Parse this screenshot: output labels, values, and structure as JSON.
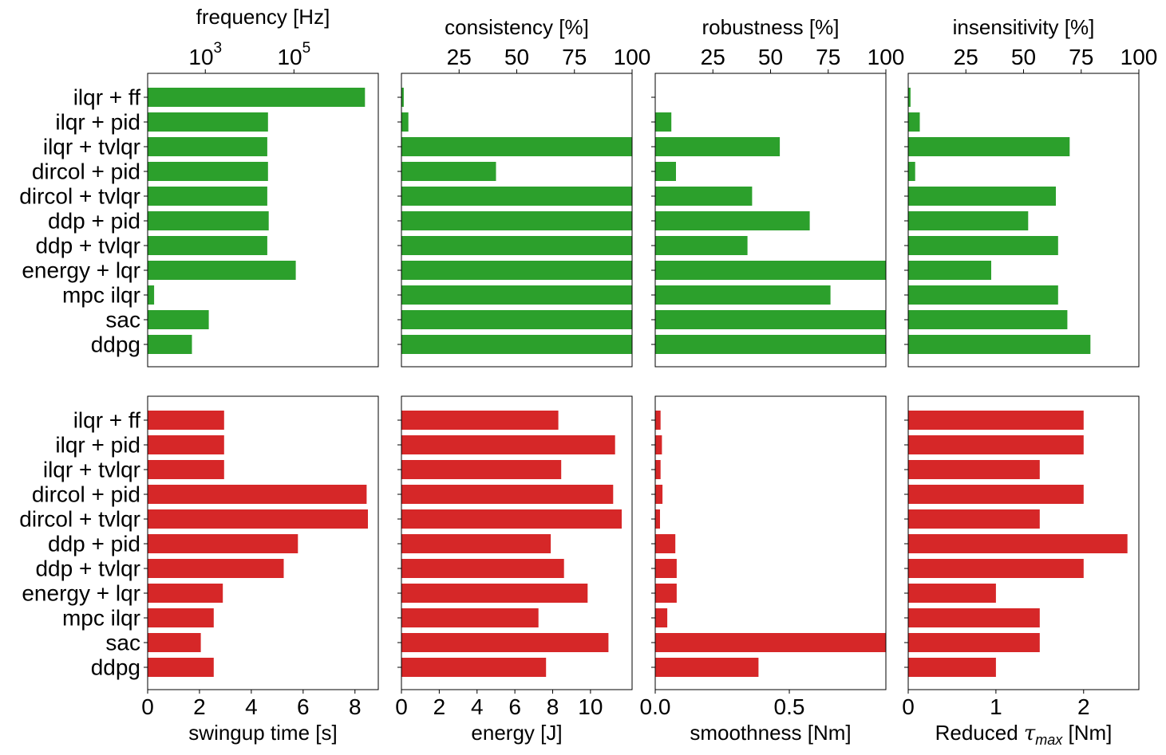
{
  "colors": {
    "top": "#2ca02c",
    "bottom": "#d62728",
    "axis": "#000000"
  },
  "categories": [
    "ilqr + ff",
    "ilqr + pid",
    "ilqr + tvlqr",
    "dircol + pid",
    "dircol + tvlqr",
    "ddp + pid",
    "ddp + tvlqr",
    "energy + lqr",
    "mpc ilqr",
    "sac",
    "ddpg"
  ],
  "chart_data": [
    {
      "type": "bar",
      "orientation": "horizontal",
      "row": "top",
      "column": 0,
      "x_scale": "log",
      "xlabel": "frequency [Hz]",
      "xlim": [
        50,
        8000000
      ],
      "tick_values": [
        1000,
        100000
      ],
      "tick_labels": [
        {
          "base": "10",
          "exp": "3"
        },
        {
          "base": "10",
          "exp": "5"
        }
      ],
      "values": [
        4000000,
        26000,
        25000,
        26000,
        25000,
        27000,
        25000,
        110000,
        70,
        1200,
        500
      ]
    },
    {
      "type": "bar",
      "orientation": "horizontal",
      "row": "top",
      "column": 1,
      "xlabel": "consistency [%]",
      "xlim": [
        0,
        100
      ],
      "tick_values": [
        25,
        50,
        75,
        100
      ],
      "tick_labels": [
        "25",
        "50",
        "75",
        "100"
      ],
      "values": [
        1,
        3,
        100,
        41,
        100,
        100,
        100,
        100,
        100,
        100,
        100
      ]
    },
    {
      "type": "bar",
      "orientation": "horizontal",
      "row": "top",
      "column": 2,
      "xlabel": "robustness [%]",
      "xlim": [
        0,
        100
      ],
      "tick_values": [
        25,
        50,
        75,
        100
      ],
      "tick_labels": [
        "25",
        "50",
        "75",
        "100"
      ],
      "values": [
        0,
        7,
        54,
        9,
        42,
        67,
        40,
        100,
        76,
        100,
        100
      ]
    },
    {
      "type": "bar",
      "orientation": "horizontal",
      "row": "top",
      "column": 3,
      "xlabel": "insensitivity [%]",
      "xlim": [
        0,
        100
      ],
      "tick_values": [
        25,
        50,
        75,
        100
      ],
      "tick_labels": [
        "25",
        "50",
        "75",
        "100"
      ],
      "values": [
        1,
        5,
        70,
        3,
        64,
        52,
        65,
        36,
        65,
        69,
        79
      ]
    },
    {
      "type": "bar",
      "orientation": "horizontal",
      "row": "bottom",
      "column": 0,
      "xlabel": "swingup time [s]",
      "xlim": [
        0,
        8.9
      ],
      "tick_values": [
        0,
        2,
        4,
        6,
        8
      ],
      "tick_labels": [
        "0",
        "2",
        "4",
        "6",
        "8"
      ],
      "values": [
        2.95,
        2.95,
        2.95,
        8.45,
        8.5,
        5.8,
        5.25,
        2.9,
        2.55,
        2.05,
        2.55
      ]
    },
    {
      "type": "bar",
      "orientation": "horizontal",
      "row": "bottom",
      "column": 1,
      "xlabel": "energy [J]",
      "xlim": [
        0,
        12.2
      ],
      "tick_values": [
        0,
        2,
        4,
        6,
        8,
        10
      ],
      "tick_labels": [
        "0",
        "2",
        "4",
        "6",
        "8",
        "10"
      ],
      "values": [
        8.3,
        11.3,
        8.45,
        11.2,
        11.65,
        7.9,
        8.6,
        9.85,
        7.25,
        10.95,
        7.65
      ]
    },
    {
      "type": "bar",
      "orientation": "horizontal",
      "row": "bottom",
      "column": 2,
      "xlabel": "smoothness [Nm]",
      "xlim": [
        0,
        0.86
      ],
      "tick_values": [
        0.0,
        0.5
      ],
      "tick_labels": [
        "0.0",
        "0.5"
      ],
      "values": [
        0.02,
        0.025,
        0.02,
        0.027,
        0.018,
        0.075,
        0.08,
        0.08,
        0.045,
        0.86,
        0.385
      ]
    },
    {
      "type": "bar",
      "orientation": "horizontal",
      "row": "bottom",
      "column": 3,
      "xlabel": "Reduced",
      "xlabel_symbol": "τ",
      "xlabel_subscript": "max",
      "xlabel_unit": " [Nm]",
      "xlim": [
        0,
        2.63
      ],
      "tick_values": [
        0,
        1,
        2
      ],
      "tick_labels": [
        "0",
        "1",
        "2"
      ],
      "values": [
        2.0,
        2.0,
        1.5,
        2.0,
        1.5,
        2.5,
        2.0,
        1.0,
        1.5,
        1.5,
        1.0
      ]
    }
  ]
}
